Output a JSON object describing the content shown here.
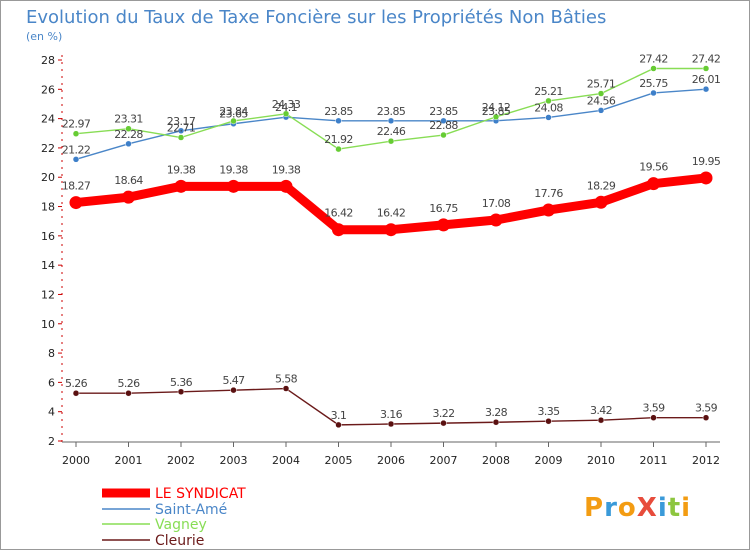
{
  "chart_data": {
    "type": "line",
    "title": "Evolution du Taux de Taxe Foncière sur les Propriétés Non Bâties",
    "subtitle": "(en %)",
    "xlabel": "",
    "ylabel": "",
    "x": [
      "2000",
      "2001",
      "2002",
      "2003",
      "2004",
      "2005",
      "2006",
      "2007",
      "2008",
      "2009",
      "2010",
      "2011",
      "2012"
    ],
    "ylim": [
      2,
      28
    ],
    "yticks": [
      "2",
      "4",
      "6",
      "8",
      "10",
      "12",
      "14",
      "16",
      "18",
      "20",
      "22",
      "24",
      "26",
      "28"
    ],
    "grid": false,
    "legend_position": "bottom-left",
    "series": [
      {
        "name": "LE SYNDICAT",
        "color": "#ff0000",
        "values": [
          18.27,
          18.64,
          19.38,
          19.38,
          19.38,
          16.42,
          16.42,
          16.75,
          17.08,
          17.76,
          18.29,
          19.56,
          19.95
        ],
        "labels": [
          "18.27",
          "18.64",
          "19.38",
          "19.38",
          "19.38",
          "16.42",
          "16.42",
          "16.75",
          "17.08",
          "17.76",
          "18.29",
          "19.56",
          "19.95"
        ]
      },
      {
        "name": "Saint-Amé",
        "color": "#4a86c8",
        "marker": "#3d7fc9",
        "values": [
          21.22,
          22.28,
          23.17,
          23.65,
          24.1,
          23.85,
          23.85,
          23.85,
          23.85,
          24.08,
          24.56,
          25.75,
          26.01
        ],
        "labels": [
          "21.22",
          "22.28",
          "23.17",
          "23.65",
          "24.1",
          "23.85",
          "23.85",
          "23.85",
          "23.85",
          "24.08",
          "24.56",
          "25.75",
          "26.01"
        ]
      },
      {
        "name": "Vagney",
        "color": "#88dd55",
        "marker": "#66cc33",
        "values": [
          22.97,
          23.31,
          22.71,
          23.84,
          24.33,
          21.92,
          22.46,
          22.88,
          24.12,
          25.21,
          25.71,
          27.42,
          27.42
        ],
        "labels": [
          "22.97",
          "23.31",
          "22.71",
          "23.84",
          "24.33",
          "21.92",
          "22.46",
          "22.88",
          "24.12",
          "25.21",
          "25.71",
          "27.42",
          "27.42"
        ]
      },
      {
        "name": "Cleurie",
        "color": "#6b1a1a",
        "marker": "#5a1010",
        "values": [
          5.26,
          5.26,
          5.36,
          5.47,
          5.58,
          3.1,
          3.16,
          3.22,
          3.28,
          3.35,
          3.42,
          3.59,
          3.59
        ],
        "labels": [
          "5.26",
          "5.26",
          "5.36",
          "5.47",
          "5.58",
          "3.1",
          "3.16",
          "3.22",
          "3.28",
          "3.35",
          "3.42",
          "3.59",
          "3.59"
        ]
      }
    ],
    "logo_text": "ProXiti"
  }
}
